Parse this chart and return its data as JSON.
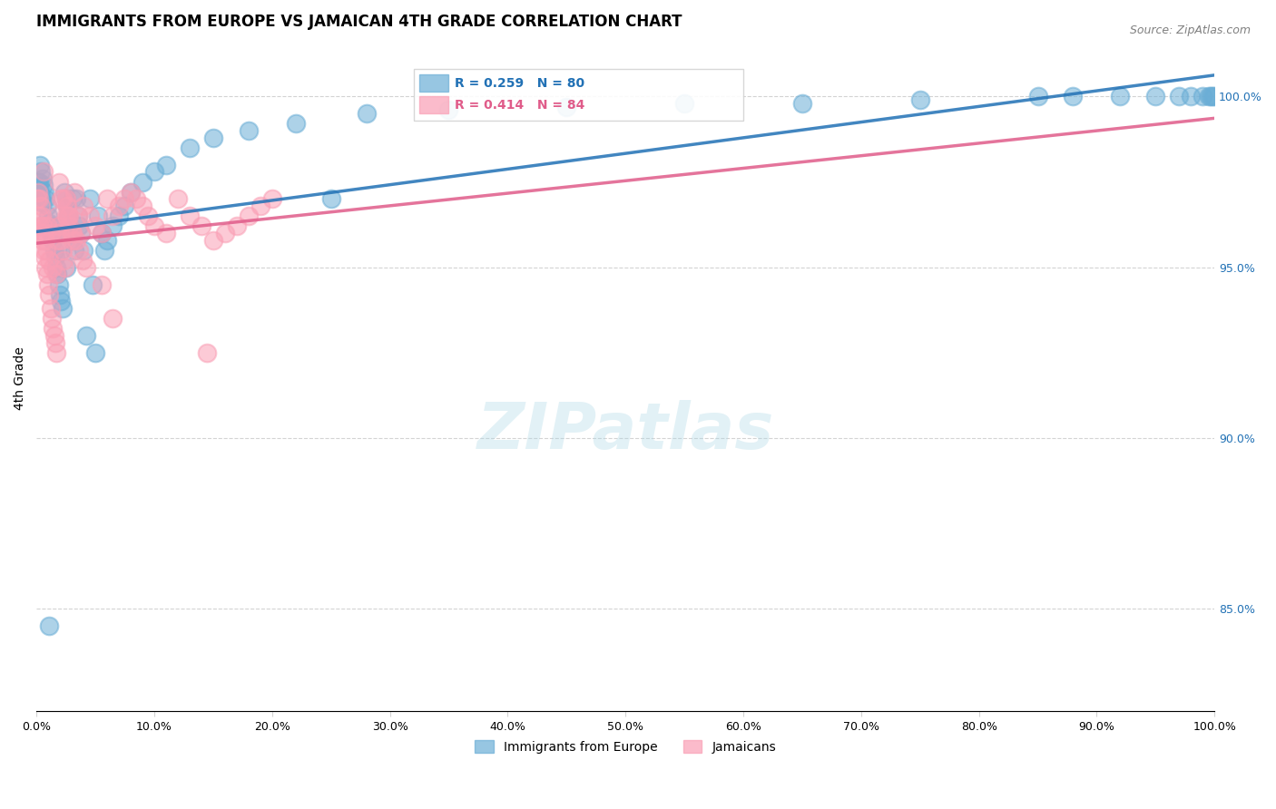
{
  "title": "IMMIGRANTS FROM EUROPE VS JAMAICAN 4TH GRADE CORRELATION CHART",
  "source": "Source: ZipAtlas.com",
  "xlabel": "",
  "ylabel": "4th Grade",
  "xlim": [
    0.0,
    100.0
  ],
  "ylim": [
    82.0,
    101.5
  ],
  "right_yticks": [
    85.0,
    90.0,
    95.0,
    100.0
  ],
  "blue_R": 0.259,
  "blue_N": 80,
  "pink_R": 0.414,
  "pink_N": 84,
  "blue_color": "#6baed6",
  "pink_color": "#fa9fb5",
  "blue_line_color": "#2171b5",
  "pink_line_color": "#e05c8a",
  "legend_label_blue": "Immigrants from Europe",
  "legend_label_pink": "Jamaicans",
  "blue_x": [
    0.2,
    0.3,
    0.4,
    0.5,
    0.6,
    0.7,
    0.8,
    0.9,
    1.0,
    1.1,
    1.2,
    1.3,
    1.4,
    1.5,
    1.6,
    1.7,
    1.8,
    1.9,
    2.0,
    2.1,
    2.2,
    2.4,
    2.5,
    2.6,
    2.7,
    2.8,
    3.0,
    3.1,
    3.2,
    3.4,
    3.5,
    3.6,
    3.8,
    4.0,
    4.2,
    4.5,
    4.8,
    5.0,
    5.2,
    5.5,
    5.8,
    6.0,
    6.5,
    7.0,
    7.5,
    8.0,
    9.0,
    10.0,
    11.0,
    13.0,
    15.0,
    18.0,
    22.0,
    28.0,
    35.0,
    45.0,
    55.0,
    65.0,
    75.0,
    85.0,
    88.0,
    92.0,
    95.0,
    97.0,
    98.0,
    99.0,
    99.5,
    99.7,
    99.8,
    100.0,
    0.15,
    0.25,
    0.35,
    0.45,
    1.05,
    1.55,
    2.05,
    2.55,
    3.05,
    25.0
  ],
  "blue_y": [
    97.5,
    98.0,
    97.8,
    97.6,
    97.4,
    97.2,
    97.0,
    96.8,
    96.5,
    96.3,
    96.2,
    96.0,
    95.8,
    95.5,
    95.3,
    95.0,
    94.8,
    94.5,
    94.2,
    94.0,
    93.8,
    97.2,
    97.0,
    96.8,
    96.5,
    96.2,
    96.0,
    95.8,
    95.5,
    97.0,
    96.5,
    96.2,
    96.0,
    95.5,
    93.0,
    97.0,
    94.5,
    92.5,
    96.5,
    96.0,
    95.5,
    95.8,
    96.2,
    96.5,
    96.8,
    97.2,
    97.5,
    97.8,
    98.0,
    98.5,
    98.8,
    99.0,
    99.2,
    99.5,
    99.6,
    99.7,
    99.8,
    99.8,
    99.9,
    100.0,
    100.0,
    100.0,
    100.0,
    100.0,
    100.0,
    100.0,
    100.0,
    100.0,
    100.0,
    100.0,
    97.5,
    97.3,
    97.1,
    96.9,
    84.5,
    96.0,
    95.5,
    95.0,
    97.0,
    97.0
  ],
  "pink_x": [
    0.1,
    0.2,
    0.3,
    0.4,
    0.5,
    0.6,
    0.7,
    0.8,
    0.9,
    1.0,
    1.1,
    1.2,
    1.3,
    1.4,
    1.5,
    1.6,
    1.7,
    1.8,
    1.9,
    2.0,
    2.1,
    2.2,
    2.3,
    2.4,
    2.5,
    2.6,
    2.7,
    2.8,
    3.0,
    3.1,
    3.2,
    3.5,
    3.8,
    4.0,
    4.5,
    5.0,
    5.5,
    6.0,
    6.5,
    7.0,
    7.5,
    8.0,
    8.5,
    9.0,
    9.5,
    10.0,
    11.0,
    12.0,
    13.0,
    14.0,
    15.0,
    16.0,
    17.0,
    18.0,
    19.0,
    20.0,
    0.15,
    0.25,
    0.35,
    0.45,
    0.55,
    0.65,
    0.75,
    0.85,
    1.05,
    1.35,
    1.65,
    1.95,
    2.25,
    2.55,
    0.95,
    1.25,
    1.75,
    2.05,
    2.75,
    3.05,
    3.35,
    3.65,
    3.95,
    4.25,
    5.5,
    6.5,
    14.5,
    0.6
  ],
  "pink_y": [
    97.0,
    96.5,
    96.2,
    96.0,
    95.8,
    95.5,
    95.3,
    95.0,
    94.8,
    94.5,
    94.2,
    93.8,
    93.5,
    93.2,
    93.0,
    92.8,
    92.5,
    96.5,
    96.2,
    96.0,
    95.8,
    95.5,
    95.2,
    95.0,
    97.0,
    96.8,
    96.5,
    96.2,
    96.0,
    95.8,
    97.2,
    96.5,
    96.0,
    96.8,
    96.5,
    96.2,
    96.0,
    97.0,
    96.5,
    96.8,
    97.0,
    97.2,
    97.0,
    96.8,
    96.5,
    96.2,
    96.0,
    97.0,
    96.5,
    96.2,
    95.8,
    96.0,
    96.2,
    96.5,
    96.8,
    97.0,
    97.2,
    97.0,
    96.8,
    96.5,
    96.2,
    96.0,
    95.8,
    95.5,
    95.2,
    95.0,
    94.8,
    97.5,
    97.0,
    96.5,
    96.2,
    96.0,
    95.8,
    97.0,
    96.5,
    96.0,
    95.8,
    95.5,
    95.2,
    95.0,
    94.5,
    93.5,
    92.5,
    97.8
  ]
}
